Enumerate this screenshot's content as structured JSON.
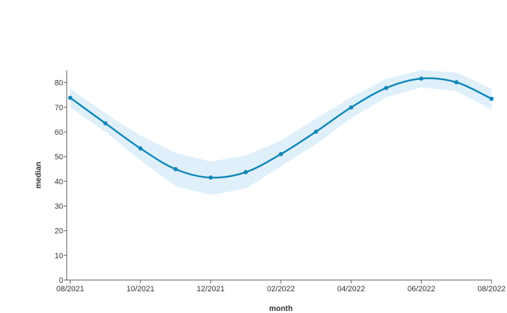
{
  "chart_data": {
    "type": "line",
    "xlabel": "month",
    "ylabel": "median",
    "ylim": [
      0,
      85
    ],
    "yticks": [
      0,
      10,
      20,
      30,
      40,
      50,
      60,
      70,
      80
    ],
    "x_tick_labels": [
      "08/2021",
      "10/2021",
      "12/2021",
      "02/2022",
      "04/2022",
      "06/2022",
      "08/2022"
    ],
    "x": [
      "08/2021",
      "09/2021",
      "10/2021",
      "11/2021",
      "12/2021",
      "01/2022",
      "02/2022",
      "03/2022",
      "04/2022",
      "05/2022",
      "06/2022",
      "07/2022",
      "08/2022"
    ],
    "series": [
      {
        "values": [
          73.8,
          63.5,
          53.3,
          44.9,
          41.5,
          43.7,
          51.0,
          60.1,
          69.9,
          77.8,
          81.6,
          80.1,
          73.4
        ],
        "band_upper": [
          77.5,
          67.5,
          58.5,
          51.5,
          48.0,
          50.5,
          56.5,
          65.5,
          74.0,
          81.5,
          85.0,
          84.0,
          77.5
        ],
        "band_lower": [
          70.0,
          60.0,
          48.5,
          38.0,
          34.5,
          37.0,
          46.0,
          55.0,
          65.5,
          74.0,
          78.0,
          76.5,
          69.0
        ]
      }
    ],
    "line_color": "#0f86b8",
    "band_color": "#dff0fb",
    "axis_color": "#555555",
    "grid": false,
    "legend": false
  }
}
